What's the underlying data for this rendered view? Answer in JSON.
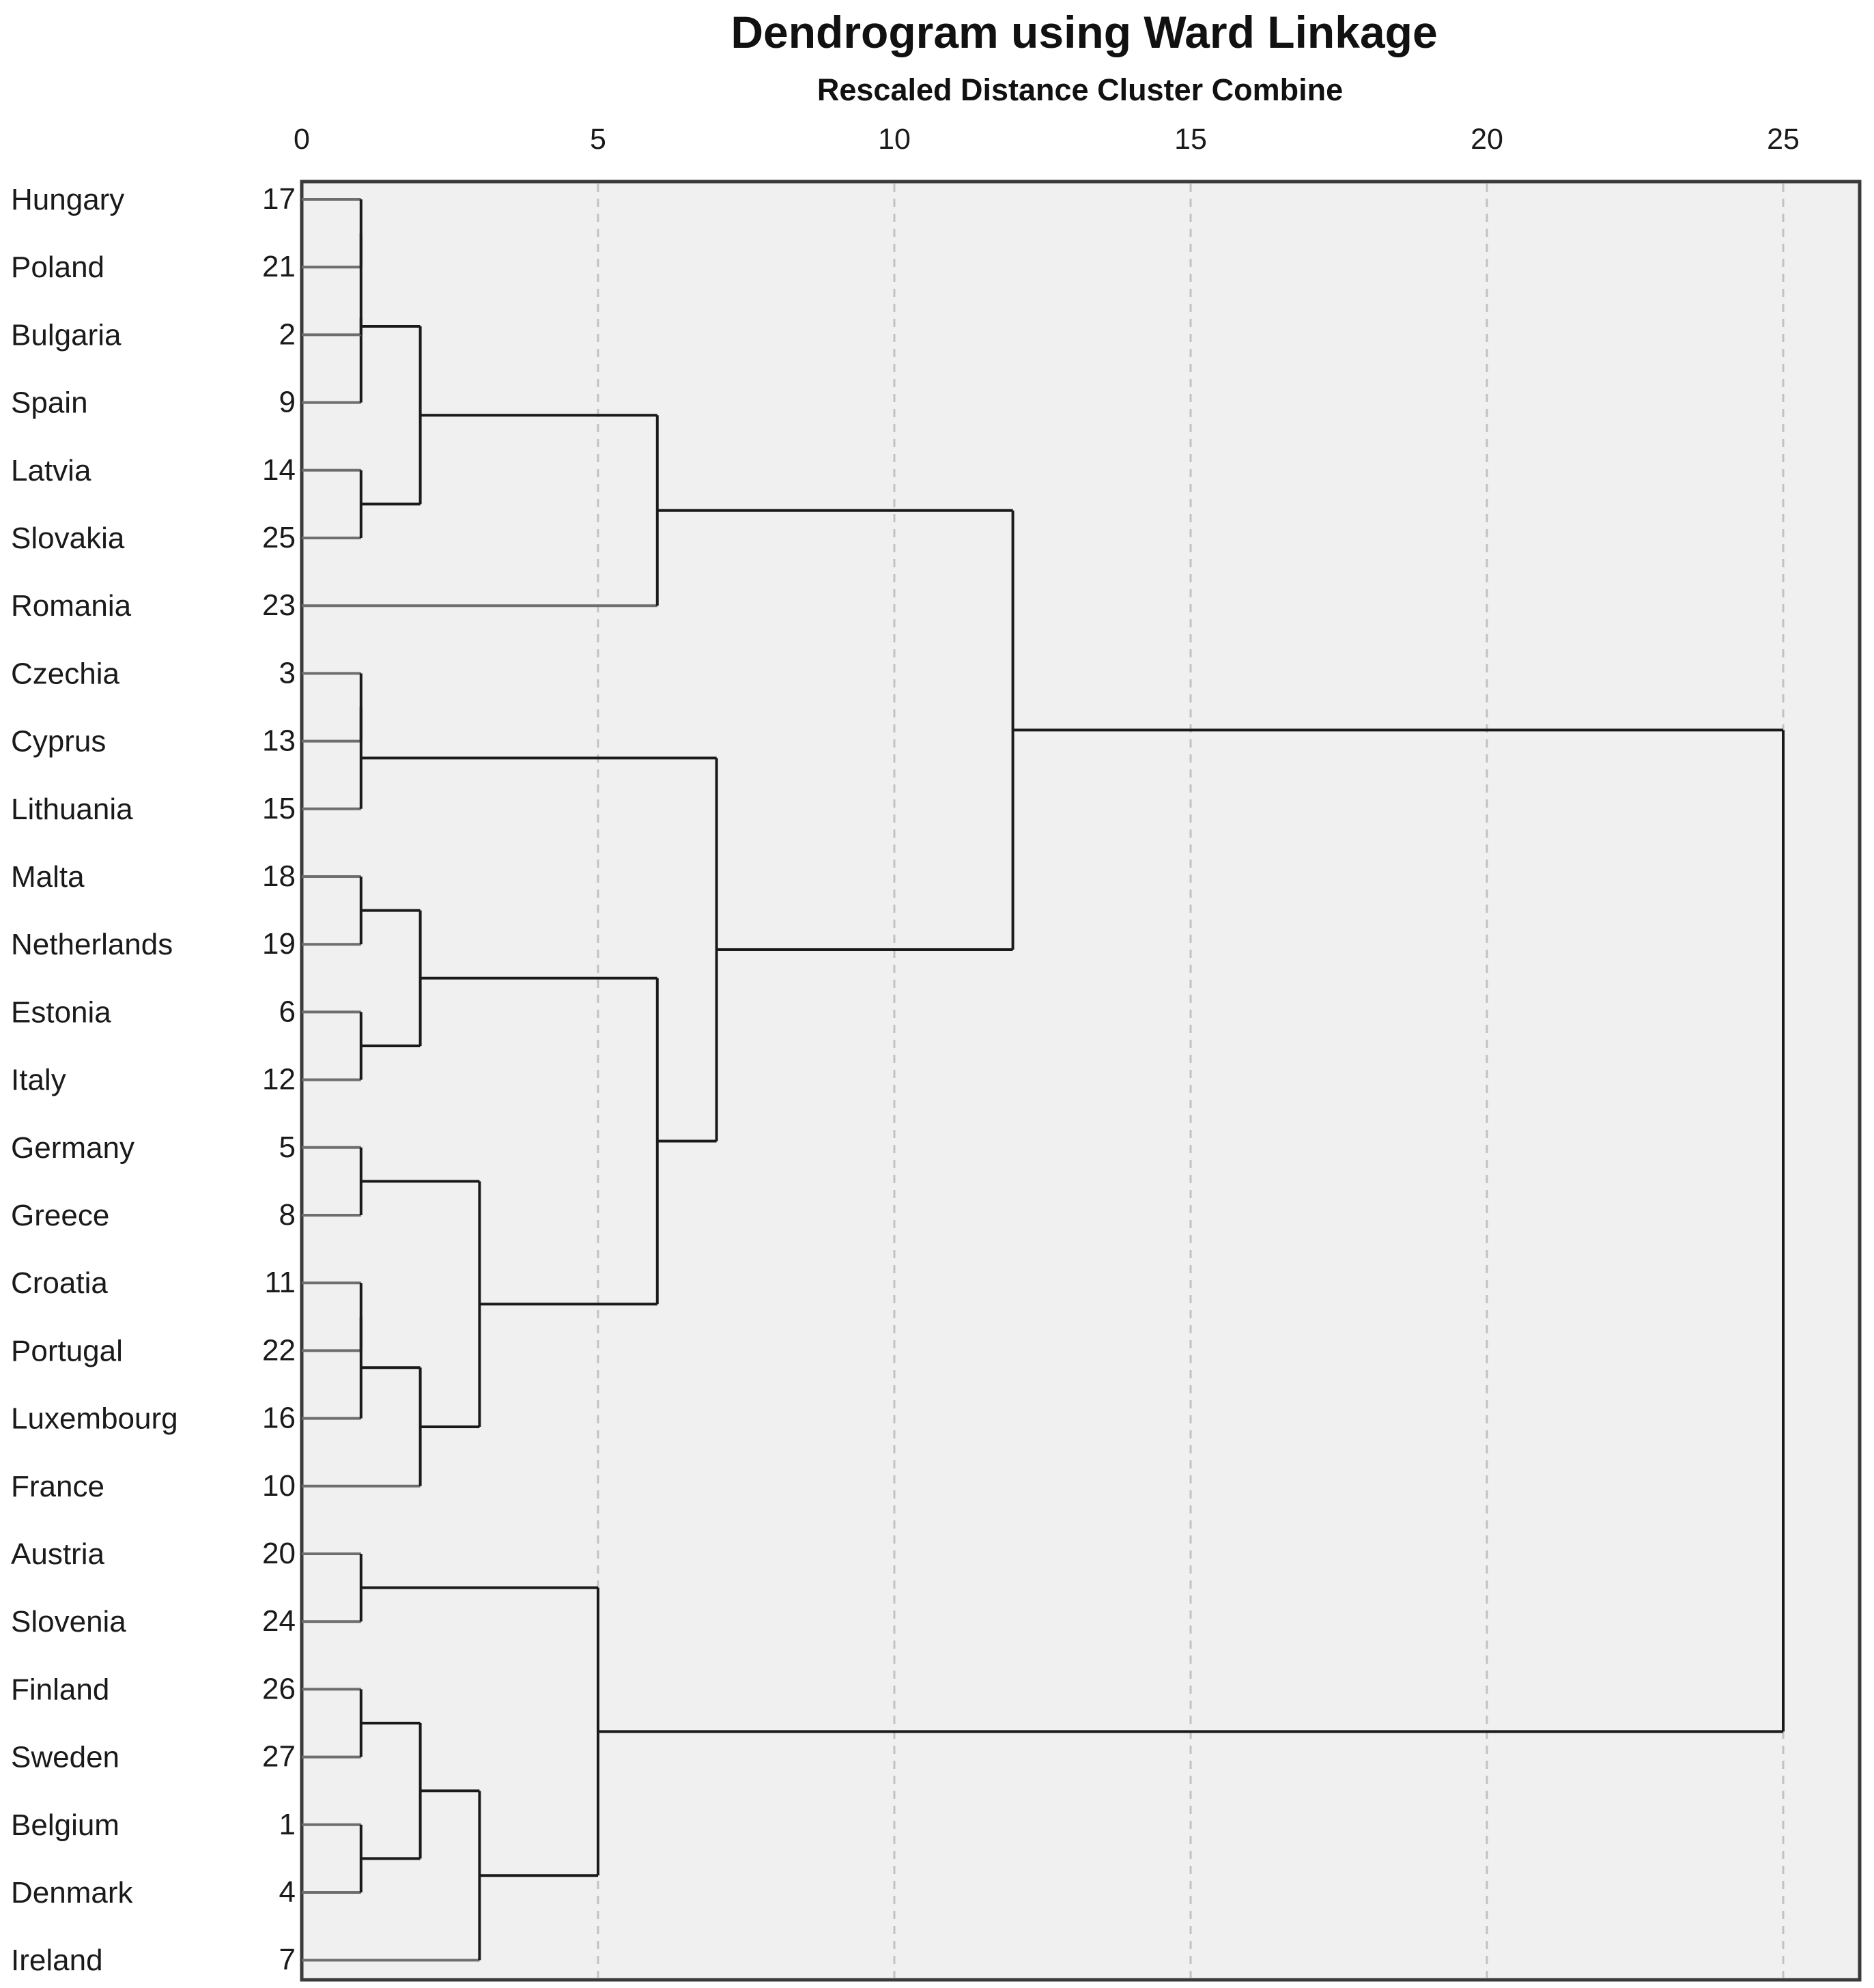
{
  "chart_data": {
    "type": "dendrogram",
    "title": "Dendrogram using Ward Linkage",
    "subtitle": "Rescaled Distance Cluster Combine",
    "xlim": [
      0,
      26.3
    ],
    "ticks": [
      0,
      5,
      10,
      15,
      20,
      25
    ],
    "tick_labels": [
      "0",
      "5",
      "10",
      "15",
      "20",
      "25"
    ],
    "grid": "vertical dashed",
    "leaves": [
      {
        "label": "Hungary",
        "id": "17"
      },
      {
        "label": "Poland",
        "id": "21"
      },
      {
        "label": "Bulgaria",
        "id": "2"
      },
      {
        "label": "Spain",
        "id": "9"
      },
      {
        "label": "Latvia",
        "id": "14"
      },
      {
        "label": "Slovakia",
        "id": "25"
      },
      {
        "label": "Romania",
        "id": "23"
      },
      {
        "label": "Czechia",
        "id": "3"
      },
      {
        "label": "Cyprus",
        "id": "13"
      },
      {
        "label": "Lithuania",
        "id": "15"
      },
      {
        "label": "Malta",
        "id": "18"
      },
      {
        "label": "Netherlands",
        "id": "19"
      },
      {
        "label": "Estonia",
        "id": "6"
      },
      {
        "label": "Italy",
        "id": "12"
      },
      {
        "label": "Germany",
        "id": "5"
      },
      {
        "label": "Greece",
        "id": "8"
      },
      {
        "label": "Croatia",
        "id": "11"
      },
      {
        "label": "Portugal",
        "id": "22"
      },
      {
        "label": "Luxembourg",
        "id": "16"
      },
      {
        "label": "France",
        "id": "10"
      },
      {
        "label": "Austria",
        "id": "20"
      },
      {
        "label": "Slovenia",
        "id": "24"
      },
      {
        "label": "Finland",
        "id": "26"
      },
      {
        "label": "Sweden",
        "id": "27"
      },
      {
        "label": "Belgium",
        "id": "1"
      },
      {
        "label": "Denmark",
        "id": "4"
      },
      {
        "label": "Ireland",
        "id": "7"
      }
    ],
    "merges": [
      {
        "id": "A",
        "children": [
          0,
          1
        ],
        "distance": 1
      },
      {
        "id": "B",
        "children": [
          "A",
          3
        ],
        "distance": 1
      },
      {
        "id": "C",
        "children": [
          2,
          "B"
        ],
        "distance": 1
      },
      {
        "id": "D",
        "children": [
          4,
          5
        ],
        "distance": 1
      },
      {
        "id": "E",
        "children": [
          "C",
          "D"
        ],
        "distance": 2
      },
      {
        "id": "F",
        "children": [
          "E",
          6
        ],
        "distance": 6
      },
      {
        "id": "G",
        "children": [
          7,
          8
        ],
        "distance": 1
      },
      {
        "id": "H",
        "children": [
          "G",
          9
        ],
        "distance": 1
      },
      {
        "id": "I",
        "children": [
          10,
          11
        ],
        "distance": 1
      },
      {
        "id": "J",
        "children": [
          12,
          13
        ],
        "distance": 1
      },
      {
        "id": "K",
        "children": [
          "I",
          "J"
        ],
        "distance": 2
      },
      {
        "id": "L",
        "children": [
          14,
          15
        ],
        "distance": 1
      },
      {
        "id": "M",
        "children": [
          16,
          17
        ],
        "distance": 1
      },
      {
        "id": "N",
        "children": [
          "M",
          18
        ],
        "distance": 1
      },
      {
        "id": "O",
        "children": [
          "N",
          19
        ],
        "distance": 2
      },
      {
        "id": "P",
        "children": [
          "L",
          "O"
        ],
        "distance": 3
      },
      {
        "id": "Q",
        "children": [
          "K",
          "P"
        ],
        "distance": 6
      },
      {
        "id": "R",
        "children": [
          "H",
          "Q"
        ],
        "distance": 7
      },
      {
        "id": "S",
        "children": [
          "F",
          "R"
        ],
        "distance": 12
      },
      {
        "id": "T",
        "children": [
          20,
          21
        ],
        "distance": 1
      },
      {
        "id": "U",
        "children": [
          22,
          23
        ],
        "distance": 1
      },
      {
        "id": "V",
        "children": [
          24,
          25
        ],
        "distance": 1
      },
      {
        "id": "W",
        "children": [
          "U",
          "V"
        ],
        "distance": 2
      },
      {
        "id": "X",
        "children": [
          "W",
          26
        ],
        "distance": 3
      },
      {
        "id": "Y",
        "children": [
          "T",
          "X"
        ],
        "distance": 5
      },
      {
        "id": "Z",
        "children": [
          "S",
          "Y"
        ],
        "distance": 25
      }
    ],
    "colors": {
      "plot_background": "#f0f0f0",
      "frame": "#3a3a3a",
      "links": "#1a1a1a",
      "leaf_stubs": "#6e6e6e",
      "grid": "#c2c2c2",
      "text": "#111111"
    }
  }
}
